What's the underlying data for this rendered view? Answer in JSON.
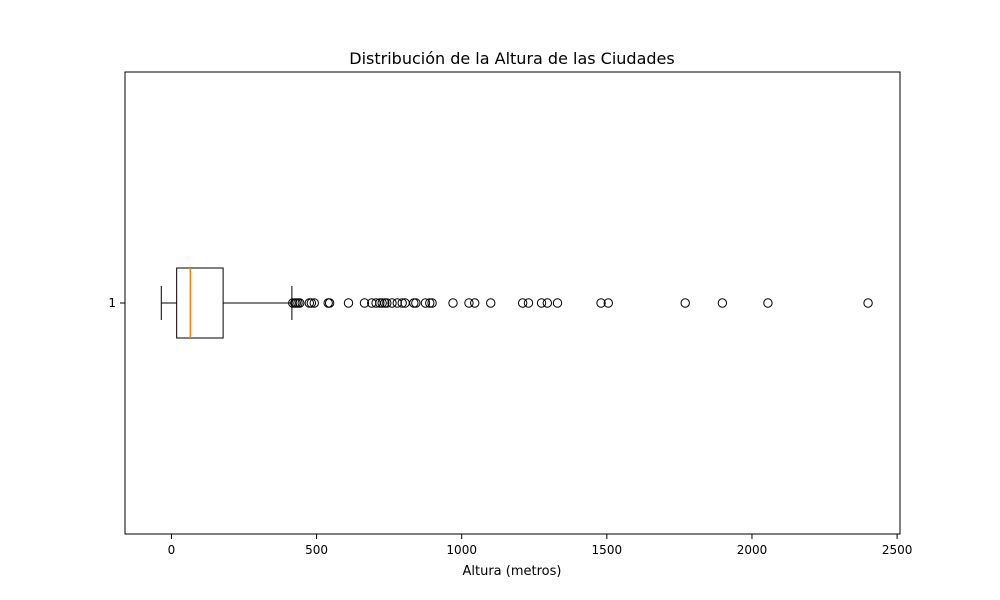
{
  "chart_data": {
    "type": "boxplot",
    "orientation": "horizontal",
    "title": "Distribución de la Altura de las Ciudades",
    "xlabel": "Altura (metros)",
    "ylabel": "",
    "xlim": [
      -160,
      2510
    ],
    "x_ticks": [
      0,
      500,
      1000,
      1500,
      2000,
      2500
    ],
    "y_tick_label": "1",
    "grid": false,
    "colors": {
      "box": "#000000",
      "median": "#ff7f0e",
      "outlier": "#000000"
    },
    "box": {
      "whisker_low": -35,
      "q1": 18,
      "median": 65,
      "q3": 178,
      "whisker_high": 415
    },
    "outliers": [
      418,
      425,
      430,
      436,
      442,
      475,
      482,
      492,
      540,
      545,
      610,
      665,
      690,
      705,
      718,
      726,
      735,
      742,
      760,
      778,
      795,
      805,
      835,
      842,
      875,
      890,
      898,
      970,
      1025,
      1045,
      1100,
      1210,
      1230,
      1275,
      1295,
      1330,
      1480,
      1505,
      1770,
      1898,
      2055,
      2400
    ]
  }
}
